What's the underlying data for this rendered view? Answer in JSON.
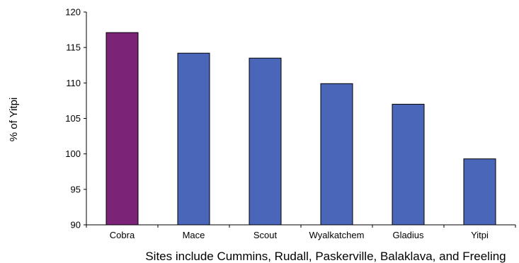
{
  "chart_data": {
    "type": "bar",
    "categories": [
      "Cobra",
      "Mace",
      "Scout",
      "Wyalkatchem",
      "Gladius",
      "Yitpi"
    ],
    "values": [
      117.1,
      114.2,
      113.5,
      109.9,
      107.0,
      99.3
    ],
    "colors": [
      "#7B2377",
      "#4A66B8",
      "#4A66B8",
      "#4A66B8",
      "#4A66B8",
      "#4A66B8"
    ],
    "ylabel": "% of Yitpi",
    "xlabel": "Sites include Cummins, Rudall, Paskerville, Balaklava, and Freeling",
    "ylim": [
      90,
      120
    ],
    "yticks": [
      90,
      95,
      100,
      105,
      110,
      115,
      120
    ],
    "grid": false,
    "legend": "none"
  }
}
